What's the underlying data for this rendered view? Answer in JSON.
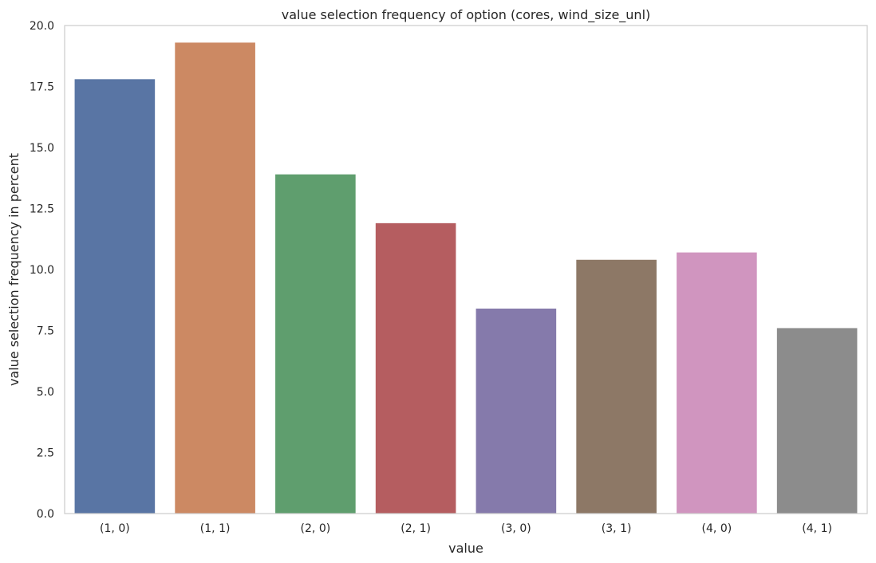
{
  "chart_data": {
    "type": "bar",
    "title": "value selection frequency of option (cores, wind_size_unl)",
    "xlabel": "value",
    "ylabel": "value selection frequency in percent",
    "categories": [
      "(1, 0)",
      "(1, 1)",
      "(2, 0)",
      "(2, 1)",
      "(3, 0)",
      "(3, 1)",
      "(4, 0)",
      "(4, 1)"
    ],
    "values": [
      17.8,
      19.3,
      13.9,
      11.9,
      8.4,
      10.4,
      10.7,
      7.6
    ],
    "colors": [
      "#5975a4",
      "#cc8963",
      "#5f9e6e",
      "#b55d60",
      "#857aab",
      "#8d7866",
      "#d095bf",
      "#8c8c8c"
    ],
    "ylim": [
      0,
      20
    ],
    "yticks": [
      "0.0",
      "2.5",
      "5.0",
      "7.5",
      "10.0",
      "12.5",
      "15.0",
      "17.5",
      "20.0"
    ],
    "grid": false,
    "legend": "none"
  }
}
